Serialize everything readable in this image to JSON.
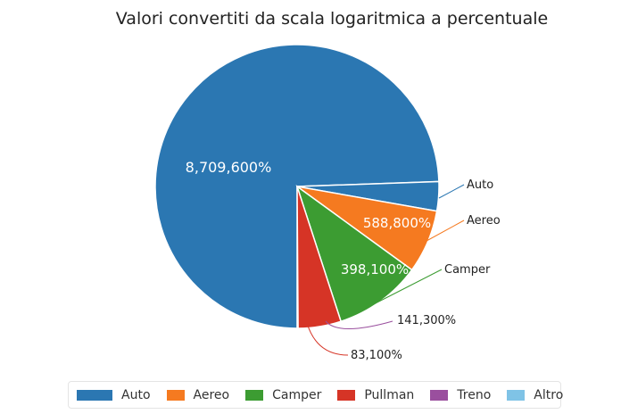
{
  "chart_data": {
    "type": "pie",
    "title": "Valori convertiti da scala logaritmica a percentuale",
    "categories": [
      "Auto",
      "Aereo",
      "Camper",
      "Pullman",
      "Treno",
      "Altro"
    ],
    "colors": [
      "#2b77b2",
      "#f57a20",
      "#3c9c32",
      "#d63426",
      "#9a4f9e",
      "#7fc3e6"
    ],
    "slice_labels": {
      "big": "8,709,600%",
      "aereo": "588,800%",
      "camper": "398,100%",
      "treno": "141,300%",
      "pullman": "83,100%"
    },
    "values_percent": {
      "Auto": 8709600,
      "Aereo": 588800,
      "Camper": 398100,
      "Treno": 141300,
      "Pullman": 83100
    },
    "legend_position": "bottom"
  }
}
